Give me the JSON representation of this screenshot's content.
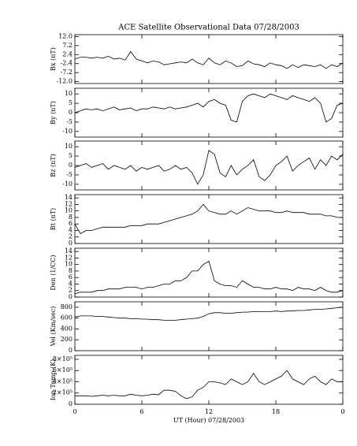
{
  "chart_data": [
    {
      "type": "line",
      "title": "ACE Satellite Observational Data   07/28/2003",
      "ylabel": "Bx (nT)",
      "color": "#000000",
      "xlim": [
        0,
        24
      ],
      "x": [
        0,
        0.5,
        1,
        1.5,
        2,
        2.5,
        3,
        3.5,
        4,
        4.5,
        5,
        5.5,
        6,
        6.5,
        7,
        7.5,
        8,
        8.5,
        9,
        9.5,
        10,
        10.5,
        11,
        11.5,
        12,
        12.5,
        13,
        13.5,
        14,
        14.5,
        15,
        15.5,
        16,
        16.5,
        17,
        17.5,
        18,
        18.5,
        19,
        19.5,
        20,
        20.5,
        21,
        21.5,
        22,
        22.5,
        23,
        23.5,
        24
      ],
      "values": [
        0,
        1,
        1,
        0.5,
        1,
        0.5,
        1.5,
        0,
        0.5,
        -0.5,
        4,
        0,
        -1,
        -2,
        -1,
        -1.5,
        -3,
        -2.5,
        -2,
        -1.5,
        -2,
        0,
        -2,
        -3,
        0.5,
        -2,
        -3,
        -1,
        -2,
        -4,
        -3.5,
        -1,
        -2.5,
        -3,
        -4,
        -2,
        -3,
        -3.5,
        -5,
        -3,
        -4.5,
        -3,
        -3.5,
        -4,
        -3,
        -5,
        -3,
        -4,
        -2
      ],
      "ylim": [
        -13,
        13
      ],
      "yticks": [
        {
          "value": -12,
          "label": "-12.0"
        },
        -7.2,
        -2.4,
        2.4,
        7.2,
        {
          "value": 12,
          "label": "12.0"
        }
      ]
    },
    {
      "type": "line",
      "ylabel": "By (nT)",
      "color": "#000000",
      "xlim": [
        0,
        24
      ],
      "x": [
        0,
        0.5,
        1,
        1.5,
        2,
        2.5,
        3,
        3.5,
        4,
        4.5,
        5,
        5.5,
        6,
        6.5,
        7,
        7.5,
        8,
        8.5,
        9,
        9.5,
        10,
        10.5,
        11,
        11.5,
        12,
        12.5,
        13,
        13.5,
        14,
        14.5,
        15,
        15.5,
        16,
        16.5,
        17,
        17.5,
        18,
        18.5,
        19,
        19.5,
        20,
        20.5,
        21,
        21.5,
        22,
        22.5,
        23,
        23.5,
        24
      ],
      "values": [
        0,
        1,
        2,
        1.5,
        2,
        1,
        2,
        3,
        1.5,
        2,
        2.5,
        1,
        2,
        2,
        3,
        2.5,
        2,
        3,
        2,
        2.5,
        3,
        4,
        5,
        3,
        6,
        7,
        5,
        4,
        -4,
        -5,
        6,
        9,
        10,
        9,
        8,
        10,
        9,
        8,
        7,
        9,
        8,
        7,
        6,
        8,
        5,
        -5,
        -3,
        4,
        5
      ],
      "ylim": [
        -13,
        13
      ],
      "yticks": [
        -10,
        -5,
        0,
        5,
        10
      ]
    },
    {
      "type": "line",
      "ylabel": "Bz (nT)",
      "color": "#000000",
      "xlim": [
        0,
        24
      ],
      "x": [
        0,
        0.5,
        1,
        1.5,
        2,
        2.5,
        3,
        3.5,
        4,
        4.5,
        5,
        5.5,
        6,
        6.5,
        7,
        7.5,
        8,
        8.5,
        9,
        9.5,
        10,
        10.5,
        11,
        11.5,
        12,
        12.5,
        13,
        13.5,
        14,
        14.5,
        15,
        15.5,
        16,
        16.5,
        17,
        17.5,
        18,
        18.5,
        19,
        19.5,
        20,
        20.5,
        21,
        21.5,
        22,
        22.5,
        23,
        23.5,
        24
      ],
      "values": [
        -1,
        0,
        1,
        -1,
        0,
        1,
        -2,
        0,
        -1,
        -2,
        0,
        -3,
        -1,
        -2,
        -1,
        0,
        -3,
        -2,
        0,
        -2,
        -1,
        -4,
        -10,
        -5,
        8,
        6,
        -4,
        -6,
        0,
        -5,
        -2,
        0,
        3,
        -6,
        -8,
        -5,
        0,
        2,
        5,
        -3,
        0,
        2,
        4,
        -2,
        3,
        0,
        5,
        3,
        6
      ],
      "ylim": [
        -13,
        13
      ],
      "yticks": [
        -10,
        -5,
        0,
        5,
        10
      ]
    },
    {
      "type": "line",
      "ylabel": "Bt (nT)",
      "color": "#000000",
      "xlim": [
        0,
        24
      ],
      "x": [
        0,
        0.5,
        1,
        1.5,
        2,
        2.5,
        3,
        3.5,
        4,
        4.5,
        5,
        5.5,
        6,
        6.5,
        7,
        7.5,
        8,
        8.5,
        9,
        9.5,
        10,
        10.5,
        11,
        11.5,
        12,
        12.5,
        13,
        13.5,
        14,
        14.5,
        15,
        15.5,
        16,
        16.5,
        17,
        17.5,
        18,
        18.5,
        19,
        19.5,
        20,
        20.5,
        21,
        21.5,
        22,
        22.5,
        23,
        23.5,
        24
      ],
      "values": [
        6,
        3,
        4,
        4,
        4.5,
        5,
        5,
        5,
        5,
        5,
        5.5,
        5.5,
        5.5,
        6,
        6,
        6,
        6.5,
        7,
        7.5,
        8,
        8.5,
        9,
        10,
        12,
        10,
        9.5,
        9,
        9,
        10,
        9,
        10,
        11,
        10.5,
        10,
        10,
        10,
        9.5,
        9.5,
        10,
        9.5,
        9.5,
        9.5,
        9,
        9,
        9,
        8.5,
        8.5,
        8,
        8
      ],
      "ylim": [
        0,
        15
      ],
      "yticks": [
        0,
        2,
        4,
        6,
        8,
        10,
        12,
        14
      ]
    },
    {
      "type": "line",
      "ylabel": "Den (1/CC)",
      "color": "#000000",
      "xlim": [
        0,
        24
      ],
      "x": [
        0,
        0.5,
        1,
        1.5,
        2,
        2.5,
        3,
        3.5,
        4,
        4.5,
        5,
        5.5,
        6,
        6.5,
        7,
        7.5,
        8,
        8.5,
        9,
        9.5,
        10,
        10.5,
        11,
        11.5,
        12,
        12.5,
        13,
        13.5,
        14,
        14.5,
        15,
        15.5,
        16,
        16.5,
        17,
        17.5,
        18,
        18.5,
        19,
        19.5,
        20,
        20.5,
        21,
        21.5,
        22,
        22.5,
        23,
        23.5,
        24
      ],
      "values": [
        1,
        1.5,
        1.5,
        1.5,
        2,
        2,
        2.5,
        2.5,
        2.5,
        3,
        3,
        3,
        2.5,
        3,
        3,
        3.5,
        4,
        4,
        5,
        5,
        6,
        8,
        8,
        10,
        11,
        5,
        4,
        3.5,
        3.5,
        3,
        5,
        4,
        3,
        3,
        2.5,
        2.5,
        3,
        2.5,
        2.5,
        2,
        3,
        2.5,
        2.5,
        2,
        3,
        2,
        1.5,
        1.5,
        2
      ],
      "ylim": [
        0,
        15
      ],
      "yticks": [
        0,
        2,
        4,
        6,
        8,
        10,
        12,
        14
      ]
    },
    {
      "type": "line",
      "ylabel": "Vel (Km/sec)",
      "color": "#000000",
      "xlim": [
        0,
        24
      ],
      "x": [
        0,
        0.5,
        1,
        1.5,
        2,
        2.5,
        3,
        3.5,
        4,
        4.5,
        5,
        5.5,
        6,
        6.5,
        7,
        7.5,
        8,
        8.5,
        9,
        9.5,
        10,
        10.5,
        11,
        11.5,
        12,
        12.5,
        13,
        13.5,
        14,
        14.5,
        15,
        15.5,
        16,
        16.5,
        17,
        17.5,
        18,
        18.5,
        19,
        19.5,
        20,
        20.5,
        21,
        21.5,
        22,
        22.5,
        23,
        23.5,
        24
      ],
      "values": [
        620,
        640,
        640,
        640,
        630,
        630,
        620,
        610,
        600,
        600,
        590,
        590,
        580,
        580,
        570,
        570,
        560,
        560,
        560,
        570,
        580,
        590,
        600,
        630,
        680,
        700,
        700,
        690,
        690,
        700,
        710,
        710,
        720,
        720,
        720,
        720,
        730,
        720,
        730,
        730,
        740,
        740,
        750,
        760,
        760,
        770,
        780,
        790,
        800
      ],
      "ylim": [
        0,
        900
      ],
      "yticks": [
        0,
        200,
        400,
        600,
        800
      ]
    },
    {
      "type": "line",
      "ylabel": "Ion Temp (K)",
      "xlabel": "UT (Hour)  07/28/2003",
      "color": "#000000",
      "xlim": [
        0,
        24
      ],
      "x": [
        0,
        0.5,
        1,
        1.5,
        2,
        2.5,
        3,
        3.5,
        4,
        4.5,
        5,
        5.5,
        6,
        6.5,
        7,
        7.5,
        8,
        8.5,
        9,
        9.5,
        10,
        10.5,
        11,
        11.5,
        12,
        12.5,
        13,
        13.5,
        14,
        14.5,
        15,
        15.5,
        16,
        16.5,
        17,
        17.5,
        18,
        18.5,
        19,
        19.5,
        20,
        20.5,
        21,
        21.5,
        22,
        22.5,
        23,
        23.5,
        24
      ],
      "values": [
        150000,
        150000,
        150000,
        140000,
        150000,
        160000,
        150000,
        160000,
        150000,
        150000,
        180000,
        160000,
        150000,
        160000,
        180000,
        170000,
        250000,
        250000,
        230000,
        150000,
        100000,
        130000,
        250000,
        300000,
        400000,
        400000,
        380000,
        350000,
        450000,
        400000,
        350000,
        400000,
        550000,
        400000,
        350000,
        400000,
        450000,
        500000,
        600000,
        450000,
        400000,
        350000,
        450000,
        500000,
        400000,
        350000,
        450000,
        400000,
        400000
      ],
      "ylim": [
        0,
        870000
      ],
      "yticks": [
        0,
        {
          "value": 200000,
          "label": "2×10⁵"
        },
        {
          "value": 400000,
          "label": "4×10⁵"
        },
        {
          "value": 600000,
          "label": "6×10⁵"
        },
        {
          "value": 800000,
          "label": "8×10⁵"
        }
      ],
      "xticks": [
        0,
        6,
        12,
        18,
        {
          "value": 24,
          "label": "0"
        }
      ]
    }
  ]
}
